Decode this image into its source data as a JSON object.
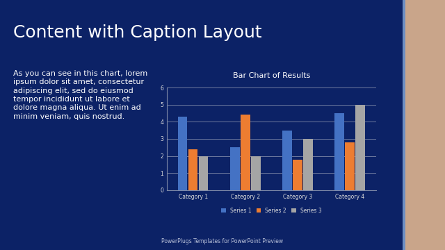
{
  "title": "Content with Caption Layout",
  "caption_lines": [
    "As you can see in this chart, lorem",
    "ipsum dolor sit amet, consectetur",
    "adipiscing elit, sed do eiusmod",
    "tempor incididunt ut labore et",
    "dolore magna aliqua. Ut enim ad",
    "minim veniam, quis nostrud."
  ],
  "footer": "PowerPlugs Templates for PowerPoint Preview",
  "chart_data": {
    "type": "bar",
    "title": "Bar Chart of Results",
    "categories": [
      "Category 1",
      "Category 2",
      "Category 3",
      "Category 4"
    ],
    "series": [
      {
        "name": "Series 1",
        "color": "#4472c4",
        "values": [
          4.3,
          2.5,
          3.5,
          4.5
        ]
      },
      {
        "name": "Series 2",
        "color": "#ed7d31",
        "values": [
          2.4,
          4.4,
          1.8,
          2.8
        ]
      },
      {
        "name": "Series 3",
        "color": "#a5a5a5",
        "values": [
          2.0,
          2.0,
          3.0,
          5.0
        ]
      }
    ],
    "ylim": [
      0,
      6
    ],
    "yticks": [
      0,
      1,
      2,
      3,
      4,
      5,
      6
    ],
    "grid": true,
    "legend": "bottom"
  }
}
